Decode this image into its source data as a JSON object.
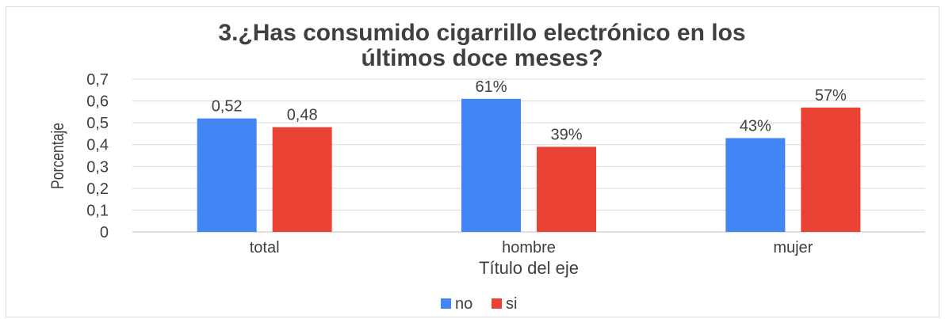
{
  "chart_data": {
    "type": "bar",
    "title_lines": [
      "3.¿Has consumido cigarrillo electrónico en los",
      "últimos doce meses?"
    ],
    "xlabel": "Título del eje",
    "ylabel": "Porcentaje",
    "categories": [
      "total",
      "hombre",
      "mujer"
    ],
    "ylim": [
      0,
      0.7
    ],
    "yticks": [
      0,
      0.1,
      0.2,
      0.3,
      0.4,
      0.5,
      0.6,
      0.7
    ],
    "ytick_labels": [
      "0",
      "0,1",
      "0,2",
      "0,3",
      "0,4",
      "0,5",
      "0,6",
      "0,7"
    ],
    "grid": true,
    "legend_position": "bottom",
    "series": [
      {
        "name": "no",
        "color": "#4285f4",
        "values": [
          0.52,
          0.61,
          0.43
        ],
        "labels": [
          "0,52",
          "61%",
          "43%"
        ]
      },
      {
        "name": "si",
        "color": "#ea4335",
        "values": [
          0.48,
          0.39,
          0.57
        ],
        "labels": [
          "0,48",
          "39%",
          "57%"
        ]
      }
    ]
  }
}
